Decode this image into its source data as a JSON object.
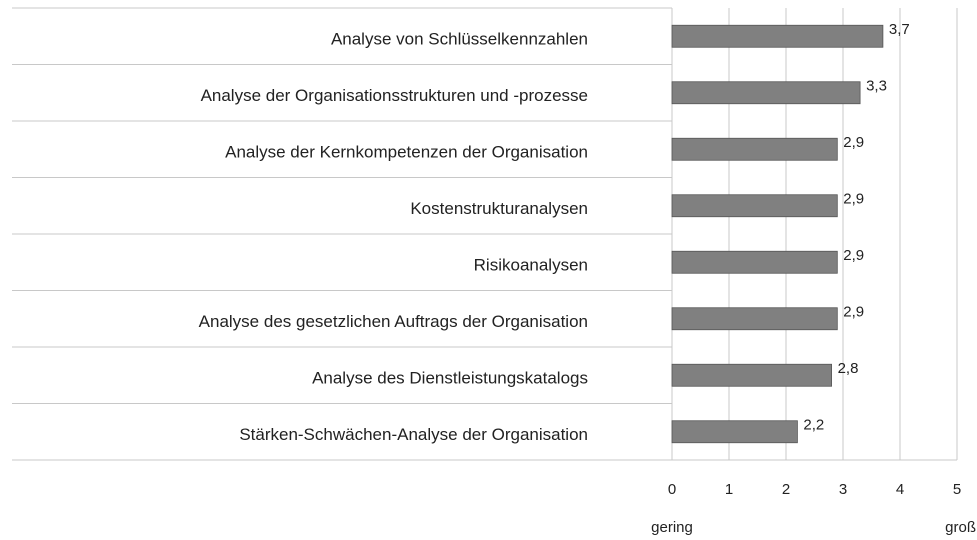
{
  "chart_data": {
    "type": "hbar",
    "categories": [
      "Analyse von Schlüsselkennzahlen",
      "Analyse der Organisationsstrukturen und -prozesse",
      "Analyse der Kernkompetenzen der Organisation",
      "Kostenstrukturanalysen",
      "Risikoanalysen",
      "Analyse des gesetzlichen Auftrags der Organisation",
      "Analyse des Dienstleistungskatalogs",
      "Stärken-Schwächen-Analyse der Organisation"
    ],
    "values": [
      3.7,
      3.3,
      2.9,
      2.9,
      2.9,
      2.9,
      2.8,
      2.2
    ],
    "value_labels": [
      "3,7",
      "3,3",
      "2,9",
      "2,9",
      "2,9",
      "2,9",
      "2,8",
      "2,2"
    ],
    "color": "#808080",
    "xlim": [
      0,
      5
    ],
    "xticks": [
      0,
      1,
      2,
      3,
      4,
      5
    ],
    "grid": true,
    "annotations": [
      "gering",
      "groß"
    ]
  }
}
